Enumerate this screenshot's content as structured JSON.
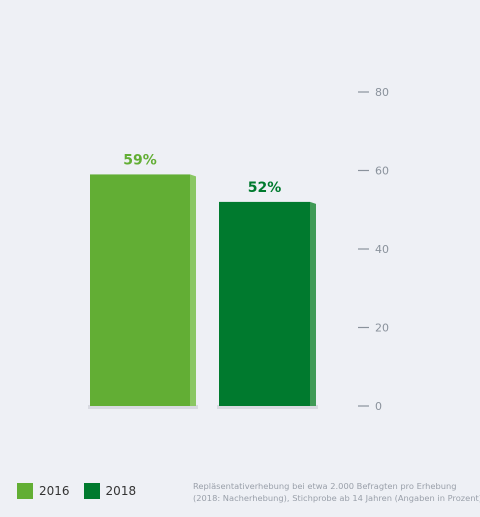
{
  "chart_data": {
    "type": "bar",
    "categories": [
      "2016",
      "2018"
    ],
    "values": [
      59,
      52
    ],
    "value_labels": [
      "59%",
      "52%"
    ],
    "ylim": [
      0,
      80
    ],
    "yticks": [
      0,
      20,
      40,
      60,
      80
    ],
    "ytick_labels": [
      "0",
      "20",
      "40",
      "60",
      "80"
    ],
    "grid": false,
    "legend_position": "bottom-left",
    "colors": [
      "#62ae34",
      "#007a2e"
    ],
    "side_colors": [
      "#8ac763",
      "#3f9a56"
    ]
  },
  "legend": {
    "items": [
      {
        "label": "2016",
        "color": "#62ae34"
      },
      {
        "label": "2018",
        "color": "#007a2e"
      }
    ]
  },
  "footnote": {
    "line1": "Repläsentativerhebung bei etwa 2.000 Befragten pro Erhebung",
    "line2": "(2018: Nacherhebung), Stichprobe ab 14 Jahren (Angaben in Prozent)"
  }
}
